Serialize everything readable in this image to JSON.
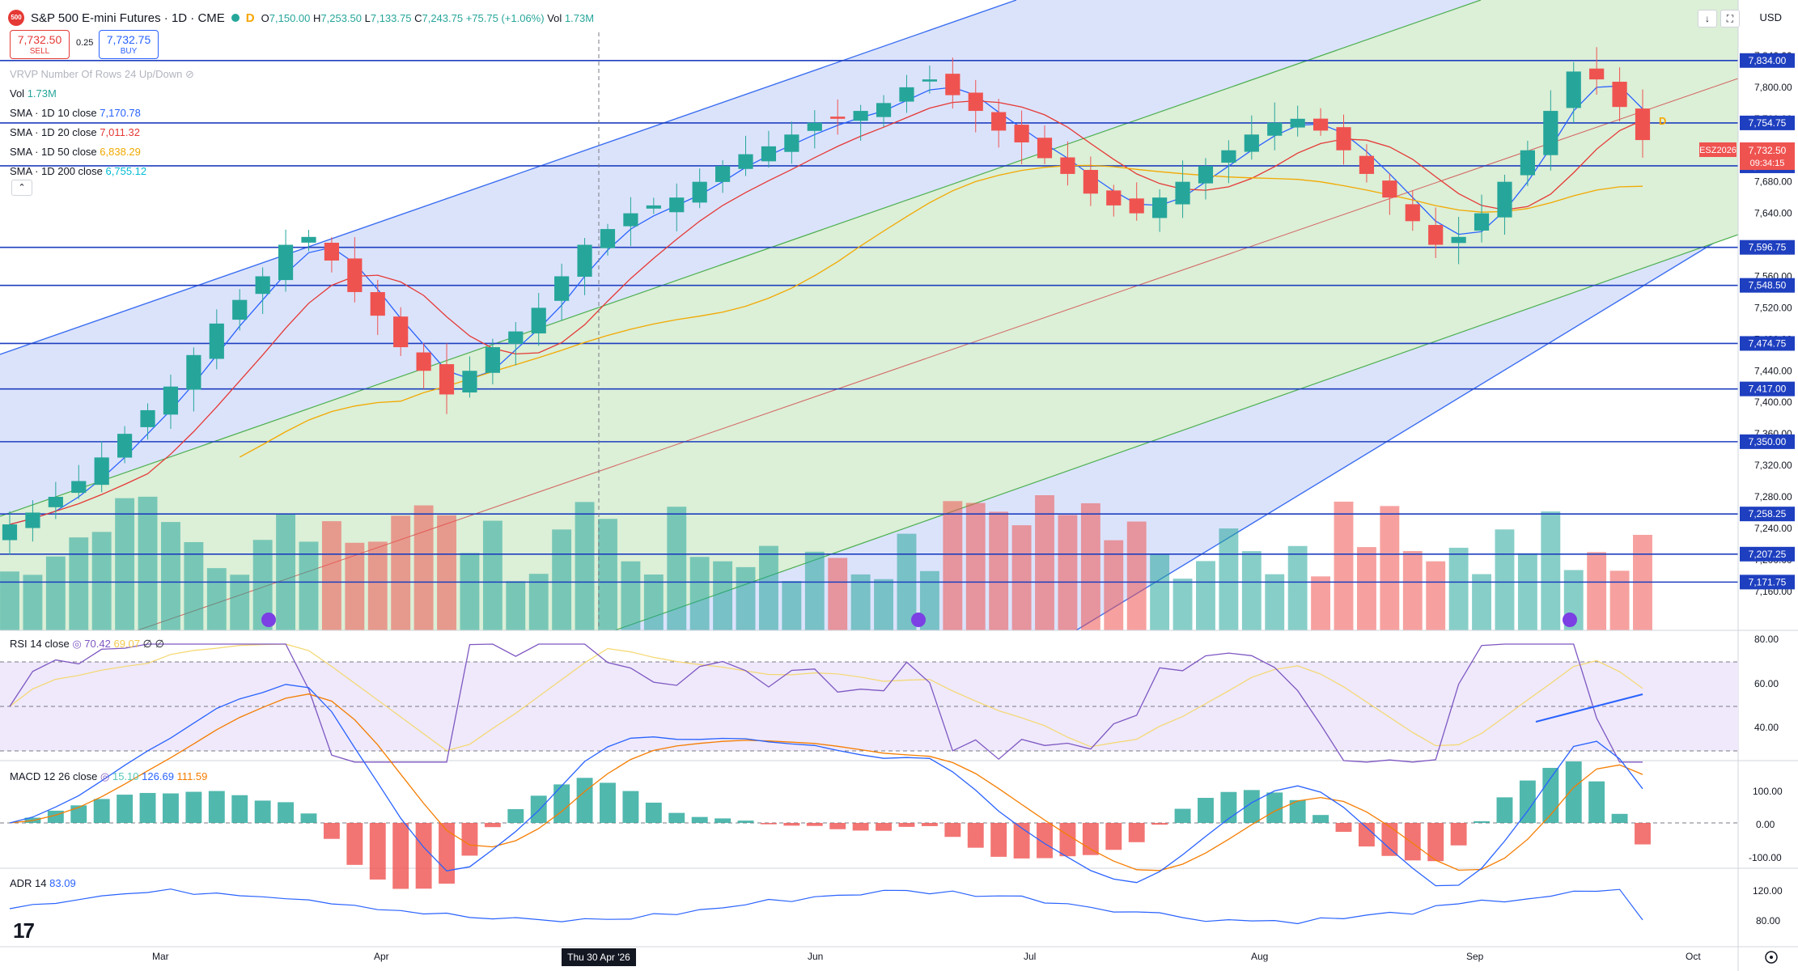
{
  "header": {
    "logo_text": "500",
    "title": "S&P 500 E-mini Futures · 1D · CME",
    "d_badge": "D",
    "open_label": "O",
    "open": "7,150.00",
    "high_label": "H",
    "high": "7,253.50",
    "low_label": "L",
    "low": "7,133.75",
    "close_label": "C",
    "close": "7,243.75",
    "change": "+75.75 (+1.06%)",
    "vol_label": "Vol",
    "vol": "1.73M",
    "currency": "USD"
  },
  "trade": {
    "sell_price": "7,732.50",
    "sell_label": "SELL",
    "spread": "0.25",
    "buy_price": "7,732.75",
    "buy_label": "BUY"
  },
  "indicators": {
    "vrvp": "VRVP Number Of Rows 24 Up/Down",
    "vol_label": "Vol",
    "vol_value": "1.73M",
    "sma10_label": "SMA · 1D 10 close",
    "sma10_value": "7,170.78",
    "sma20_label": "SMA · 1D 20 close",
    "sma20_value": "7,011.32",
    "sma50_label": "SMA · 1D 50 close",
    "sma50_value": "6,838.29",
    "sma200_label": "SMA · 1D 200 close",
    "sma200_value": "6,755.12",
    "collapse_icon": "chevron-up-icon"
  },
  "panes": {
    "rsi_title": "RSI 14 close",
    "rsi_value": "70.42",
    "rsi_ma_value": "69.07",
    "rsi_extra1": "∅",
    "rsi_extra2": "∅",
    "macd_title": "MACD 12 26 close",
    "macd_hist_value": "15.10",
    "macd_value": "126.69",
    "macd_signal_value": "111.59",
    "adr_title": "ADR 14",
    "adr_value": "83.09"
  },
  "price_axis": {
    "ticks": [
      "7,840.00",
      "7,800.00",
      "7,760.00",
      "7,720.00",
      "7,680.00",
      "7,640.00",
      "7,600.00",
      "7,560.00",
      "7,520.00",
      "7,480.00",
      "7,440.00",
      "7,400.00",
      "7,360.00",
      "7,320.00",
      "7,280.00",
      "7,240.00",
      "7,200.00",
      "7,160.00"
    ],
    "level_labels": [
      "7,834.00",
      "7,754.75",
      "7,700.25",
      "7,596.75",
      "7,548.50",
      "7,474.75",
      "7,417.00",
      "7,350.00",
      "7,258.25",
      "7,207.25",
      "7,171.75"
    ],
    "last_price": "7,732.50",
    "countdown": "09:34:15",
    "symbol_tag": "ESZ2026"
  },
  "rsi_axis": [
    "80.00",
    "60.00",
    "40.00"
  ],
  "macd_axis": [
    "100.00",
    "0.00",
    "-100.00"
  ],
  "adr_axis": [
    "120.00",
    "80.00"
  ],
  "time_axis": {
    "labels": [
      "Mar",
      "Apr",
      "Thu 30 Apr '26",
      "Jun",
      "Jul",
      "Aug",
      "Sep",
      "Oct"
    ],
    "crosshair_label": "Thu 30 Apr '26"
  },
  "colors": {
    "up": "#26a69a",
    "down": "#ef5350",
    "level": "#1e3fbf",
    "sma10": "#2962ff",
    "sma20": "#e53935",
    "sma50": "#f2a900",
    "outer_channel": "#2962ff",
    "inner_channel": "#4caf50"
  },
  "chart_data": {
    "type": "candlestick",
    "title": "S&P 500 E-mini Futures · 1D · CME",
    "price_range": [
      7130,
      7880
    ],
    "horizontal_levels": [
      7834.0,
      7754.75,
      7700.25,
      7596.75,
      7548.5,
      7474.75,
      7417.0,
      7350.0,
      7258.25,
      7207.25,
      7171.75
    ],
    "approx_closes": [
      7245,
      7260,
      7280,
      7300,
      7330,
      7360,
      7390,
      7420,
      7460,
      7500,
      7530,
      7560,
      7600,
      7610,
      7580,
      7540,
      7510,
      7470,
      7440,
      7410,
      7440,
      7470,
      7490,
      7520,
      7560,
      7600,
      7620,
      7640,
      7650,
      7660,
      7680,
      7700,
      7715,
      7725,
      7740,
      7755,
      7760,
      7770,
      7780,
      7800,
      7810,
      7790,
      7770,
      7745,
      7730,
      7710,
      7690,
      7665,
      7650,
      7640,
      7660,
      7680,
      7700,
      7720,
      7740,
      7755,
      7760,
      7745,
      7720,
      7690,
      7660,
      7630,
      7600,
      7610,
      7640,
      7680,
      7720,
      7770,
      7820,
      7810,
      7775,
      7733
    ],
    "volume_note": "volume histogram beneath candles",
    "rsi": {
      "last": 70.42,
      "ma": 69.07,
      "levels": [
        70,
        50,
        30
      ]
    },
    "macd": {
      "hist": 15.1,
      "macd": 126.69,
      "signal": 111.59
    },
    "adr": {
      "last": 83.09
    }
  }
}
